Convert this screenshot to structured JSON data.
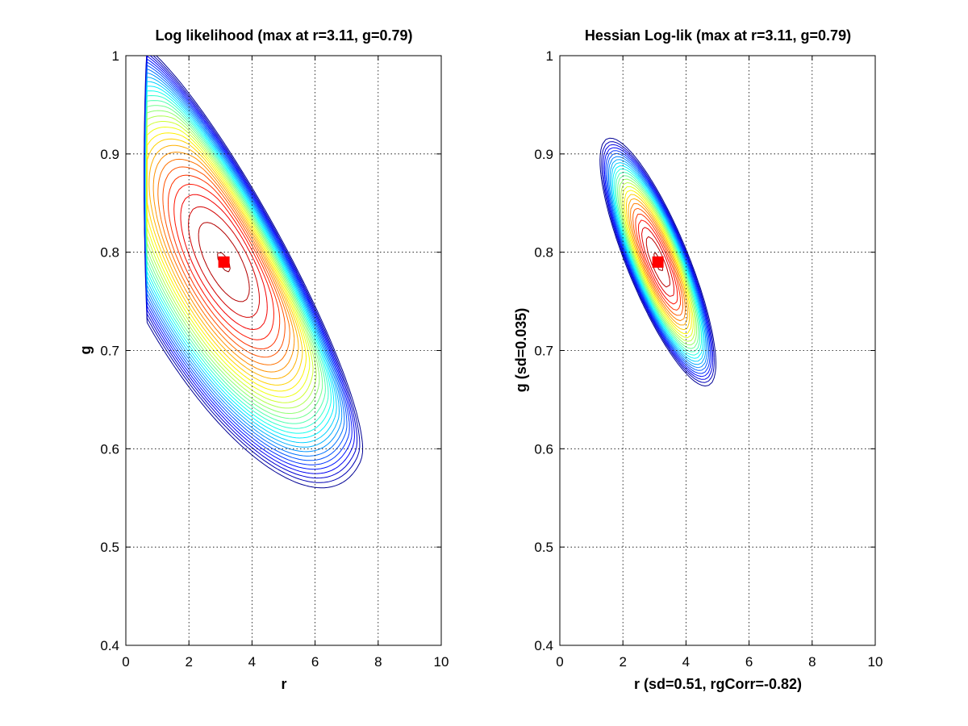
{
  "chart_data": [
    {
      "type": "contour",
      "title": "Log likelihood (max at r=3.11, g=0.79)",
      "xlabel": "r",
      "ylabel": "g",
      "xlim": [
        0,
        10
      ],
      "ylim": [
        0.4,
        1
      ],
      "xticks": [
        0,
        2,
        4,
        6,
        8,
        10
      ],
      "yticks": [
        0.4,
        0.5,
        0.6,
        0.7,
        0.8,
        0.9,
        1
      ],
      "xtick_labels": [
        "0",
        "2",
        "4",
        "6",
        "8",
        "10"
      ],
      "ytick_labels": [
        "0.4",
        "0.5",
        "0.6",
        "0.7",
        "0.8",
        "0.9",
        "1"
      ],
      "grid": true,
      "max_marker": {
        "r": 3.11,
        "g": 0.79,
        "color": "#ff0000"
      },
      "contour_levels": 32,
      "colormap": "jet"
    },
    {
      "type": "contour",
      "title": "Hessian Log-lik (max at r=3.11, g=0.79)",
      "xlabel": "r (sd=0.51, rgCorr=-0.82)",
      "ylabel": "g (sd=0.035)",
      "xlim": [
        0,
        10
      ],
      "ylim": [
        0.4,
        1
      ],
      "xticks": [
        0,
        2,
        4,
        6,
        8,
        10
      ],
      "yticks": [
        0.4,
        0.5,
        0.6,
        0.7,
        0.8,
        0.9,
        1
      ],
      "xtick_labels": [
        "0",
        "2",
        "4",
        "6",
        "8",
        "10"
      ],
      "ytick_labels": [
        "0.4",
        "0.5",
        "0.6",
        "0.7",
        "0.8",
        "0.9",
        "1"
      ],
      "grid": true,
      "max_marker": {
        "r": 3.11,
        "g": 0.79,
        "color": "#ff0000"
      },
      "r_sd": 0.51,
      "g_sd": 0.035,
      "rg_corr": -0.82,
      "contour_levels": 26,
      "colormap": "jet"
    }
  ]
}
